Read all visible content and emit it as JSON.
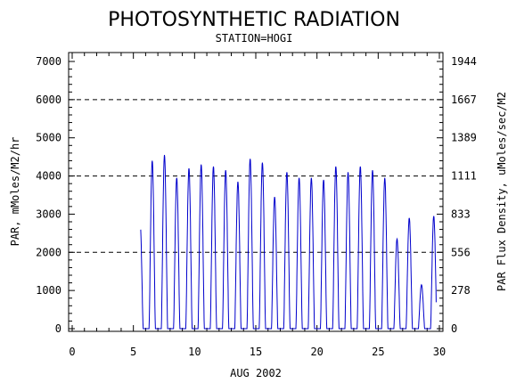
{
  "chart_data": {
    "type": "line",
    "title": "PHOTOSYNTHETIC RADIATION",
    "subtitle": "STATION=HOGI",
    "xlabel": "AUG 2002",
    "ylabel": "PAR, mMoles/M2/hr",
    "y2label": "PAR Flux Density, uMoles/sec/M2",
    "xlim": [
      0,
      30
    ],
    "ylim": [
      0,
      7000
    ],
    "x_ticks": [
      0,
      5,
      10,
      15,
      20,
      25,
      30
    ],
    "y_ticks": [
      0,
      1000,
      2000,
      3000,
      4000,
      5000,
      6000,
      7000
    ],
    "y2_ticks": [
      0,
      278,
      556,
      833,
      1111,
      1389,
      1667,
      1944
    ],
    "grid_lines_y": [
      2000,
      4000,
      6000
    ],
    "line_color": "#0000cc",
    "series": [
      {
        "x_start": 5.6,
        "daily_peaks": [
          {
            "day": 5,
            "peak": 2850
          },
          {
            "day": 6,
            "peak": 4400
          },
          {
            "day": 7,
            "peak": 4550
          },
          {
            "day": 8,
            "peak": 3950
          },
          {
            "day": 9,
            "peak": 4200
          },
          {
            "day": 10,
            "peak": 4300
          },
          {
            "day": 11,
            "peak": 4250
          },
          {
            "day": 12,
            "peak": 4150
          },
          {
            "day": 13,
            "peak": 3850
          },
          {
            "day": 14,
            "peak": 4450
          },
          {
            "day": 15,
            "peak": 4350
          },
          {
            "day": 16,
            "peak": 3450
          },
          {
            "day": 17,
            "peak": 4100
          },
          {
            "day": 18,
            "peak": 3950
          },
          {
            "day": 19,
            "peak": 3950
          },
          {
            "day": 20,
            "peak": 3900
          },
          {
            "day": 21,
            "peak": 4250
          },
          {
            "day": 22,
            "peak": 4100
          },
          {
            "day": 23,
            "peak": 4250
          },
          {
            "day": 24,
            "peak": 4150
          },
          {
            "day": 25,
            "peak": 3950
          },
          {
            "day": 26,
            "peak": 2350
          },
          {
            "day": 27,
            "peak": 2900
          },
          {
            "day": 28,
            "peak": 1150
          },
          {
            "day": 29,
            "peak": 2950
          }
        ]
      }
    ]
  }
}
